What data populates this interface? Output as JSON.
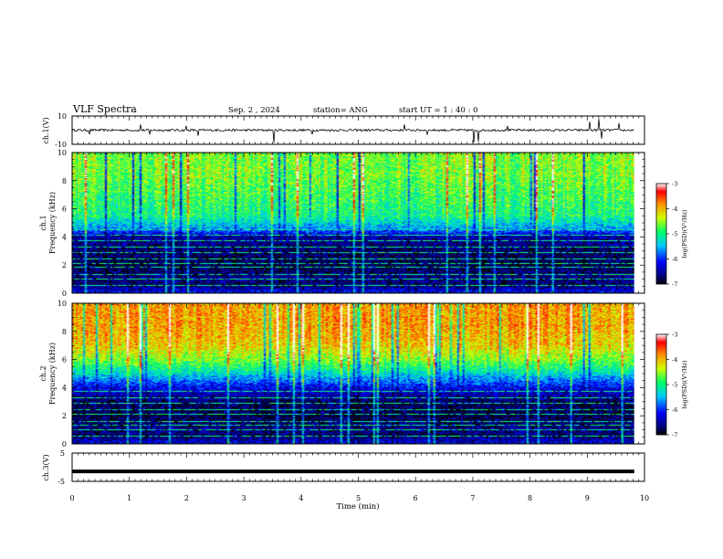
{
  "header": {
    "title": "VLF Spectra",
    "date": "Sep. 2 , 2024",
    "station": "station= ANG",
    "start": "start UT = 1 : 40 : 0"
  },
  "panels": {
    "ch1": {
      "ylabel": "ch.1(V)",
      "ylim": [
        -10,
        10
      ],
      "ticks": [
        "10",
        "-10"
      ]
    },
    "spec1": {
      "ylabel_top": "ch.1",
      "ylabel": "Frequency (kHz)",
      "ylim": [
        0,
        10
      ],
      "ticks": [
        "0",
        "2",
        "4",
        "6",
        "8",
        "10"
      ],
      "colorbar": {
        "label": "log(PSD)(V²/Hz)",
        "ticks": [
          "-3",
          "-4",
          "-5",
          "-6",
          "-7"
        ],
        "range": [
          -7,
          -3
        ]
      }
    },
    "spec2": {
      "ylabel_top": "ch.2",
      "ylabel": "Frequency (kHz)",
      "ylim": [
        0,
        10
      ],
      "ticks": [
        "0",
        "2",
        "4",
        "6",
        "8",
        "10"
      ],
      "colorbar": {
        "label": "log(PSD)(V²/Hz)",
        "ticks": [
          "-3",
          "-4",
          "-5",
          "-6",
          "-7"
        ],
        "range": [
          -7,
          -3
        ]
      }
    },
    "ch3": {
      "ylabel": "ch.3(V)",
      "ylim": [
        -5,
        5
      ],
      "ticks": [
        "5",
        "-5"
      ]
    }
  },
  "xaxis": {
    "label": "Time (min)",
    "ticks": [
      "0",
      "1",
      "2",
      "3",
      "4",
      "5",
      "6",
      "7",
      "8",
      "9",
      "10"
    ],
    "xlim": [
      0,
      10
    ],
    "data_end": 9.82
  },
  "chart_data": [
    {
      "type": "line",
      "title": "ch.1(V)",
      "xlabel": "Time (min)",
      "ylabel": "ch.1(V)",
      "xlim": [
        0,
        10
      ],
      "ylim": [
        -10,
        10
      ],
      "series": [
        {
          "name": "ch.1",
          "baseline": 0,
          "noise_amplitude": 0.8,
          "spikes": [
            {
              "x": 0.3,
              "y": -3
            },
            {
              "x": 1.2,
              "y": 4
            },
            {
              "x": 1.35,
              "y": -3
            },
            {
              "x": 2.0,
              "y": 3
            },
            {
              "x": 2.2,
              "y": -4
            },
            {
              "x": 3.52,
              "y": -9
            },
            {
              "x": 4.2,
              "y": -3
            },
            {
              "x": 5.8,
              "y": 4
            },
            {
              "x": 6.2,
              "y": -3
            },
            {
              "x": 7.02,
              "y": -9
            },
            {
              "x": 7.1,
              "y": -8
            },
            {
              "x": 7.6,
              "y": 3
            },
            {
              "x": 9.05,
              "y": 6
            },
            {
              "x": 9.2,
              "y": 8
            },
            {
              "x": 9.25,
              "y": -6
            },
            {
              "x": 9.55,
              "y": 5
            }
          ]
        }
      ]
    },
    {
      "type": "heatmap",
      "title": "ch.1",
      "xlabel": "Time (min)",
      "ylabel": "Frequency (kHz)",
      "xlim": [
        0,
        10
      ],
      "ylim": [
        0,
        10
      ],
      "zlabel": "log(PSD)(V²/Hz)",
      "zlim": [
        -7,
        -3
      ],
      "profile": [
        {
          "f": 0.0,
          "z": -6.1
        },
        {
          "f": 0.5,
          "z": -6.7
        },
        {
          "f": 1.0,
          "z": -6.6
        },
        {
          "f": 2.0,
          "z": -6.8
        },
        {
          "f": 3.0,
          "z": -6.7
        },
        {
          "f": 4.0,
          "z": -6.5
        },
        {
          "f": 4.6,
          "z": -5.6
        },
        {
          "f": 5.5,
          "z": -5.0
        },
        {
          "f": 7.0,
          "z": -4.8
        },
        {
          "f": 8.5,
          "z": -4.6
        },
        {
          "f": 10.0,
          "z": -4.6
        }
      ],
      "line_freqs": [
        0.5,
        1.0,
        1.3,
        1.8,
        2.1,
        2.4,
        2.9,
        3.3,
        3.7,
        4.1,
        4.5
      ]
    },
    {
      "type": "heatmap",
      "title": "ch.2",
      "xlabel": "Time (min)",
      "ylabel": "Frequency (kHz)",
      "xlim": [
        0,
        10
      ],
      "ylim": [
        0,
        10
      ],
      "zlabel": "log(PSD)(V²/Hz)",
      "zlim": [
        -7,
        -3
      ],
      "profile": [
        {
          "f": 0.0,
          "z": -6.2
        },
        {
          "f": 0.5,
          "z": -6.7
        },
        {
          "f": 1.0,
          "z": -6.6
        },
        {
          "f": 2.0,
          "z": -6.8
        },
        {
          "f": 3.0,
          "z": -6.7
        },
        {
          "f": 4.0,
          "z": -6.2
        },
        {
          "f": 5.0,
          "z": -5.3
        },
        {
          "f": 6.0,
          "z": -4.6
        },
        {
          "f": 7.0,
          "z": -4.1
        },
        {
          "f": 8.5,
          "z": -3.9
        },
        {
          "f": 10.0,
          "z": -3.9
        }
      ],
      "line_freqs": [
        0.5,
        1.0,
        1.3,
        1.6,
        2.1,
        2.4,
        2.9,
        3.3,
        3.7
      ]
    },
    {
      "type": "line",
      "title": "ch.3(V)",
      "xlabel": "Time (min)",
      "ylabel": "ch.3(V)",
      "xlim": [
        0,
        10
      ],
      "ylim": [
        -5,
        5
      ],
      "series": [
        {
          "name": "ch.3",
          "baseline": -1.5,
          "noise_amplitude": 0
        }
      ]
    }
  ]
}
